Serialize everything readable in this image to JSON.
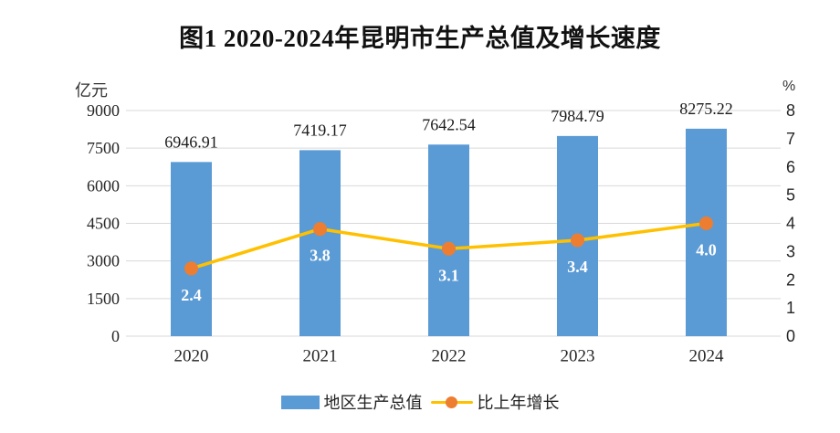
{
  "title": "图1 2020-2024年昆明市生产总值及增长速度",
  "colors": {
    "bar": "#5B9BD5",
    "line": "#FFC000",
    "marker": "#ED7D31",
    "grid": "#D9D9D9",
    "bar_label_text": "#1A1A1A",
    "line_label_text": "#FFFFFF"
  },
  "legend": {
    "items": [
      {
        "label": "地区生产总值"
      },
      {
        "label": "比上年增长"
      }
    ]
  },
  "chart_data": {
    "type": "bar",
    "categories": [
      "2020",
      "2021",
      "2022",
      "2023",
      "2024"
    ],
    "series": [
      {
        "name": "地区生产总值",
        "type": "bar",
        "axis": "left",
        "values": [
          6946.91,
          7419.17,
          7642.54,
          7984.79,
          8275.22
        ],
        "labels": [
          "6946.91",
          "7419.17",
          "7642.54",
          "7984.79",
          "8275.22"
        ]
      },
      {
        "name": "比上年增长",
        "type": "line",
        "axis": "right",
        "values": [
          2.4,
          3.8,
          3.1,
          3.4,
          4.0
        ],
        "labels": [
          "2.4",
          "3.8",
          "3.1",
          "3.4",
          "4.0"
        ]
      }
    ],
    "title": "图1 2020-2024年昆明市生产总值及增长速度",
    "left_axis": {
      "label": "亿元",
      "min": 0,
      "max": 9000,
      "step": 1500,
      "ticks": [
        0,
        1500,
        3000,
        4500,
        6000,
        7500,
        9000
      ]
    },
    "right_axis": {
      "label": "%",
      "min": 0,
      "max": 8,
      "step": 1,
      "ticks": [
        0,
        1,
        2,
        3,
        4,
        5,
        6,
        7,
        8
      ]
    },
    "grid": true,
    "legend_position": "bottom"
  }
}
